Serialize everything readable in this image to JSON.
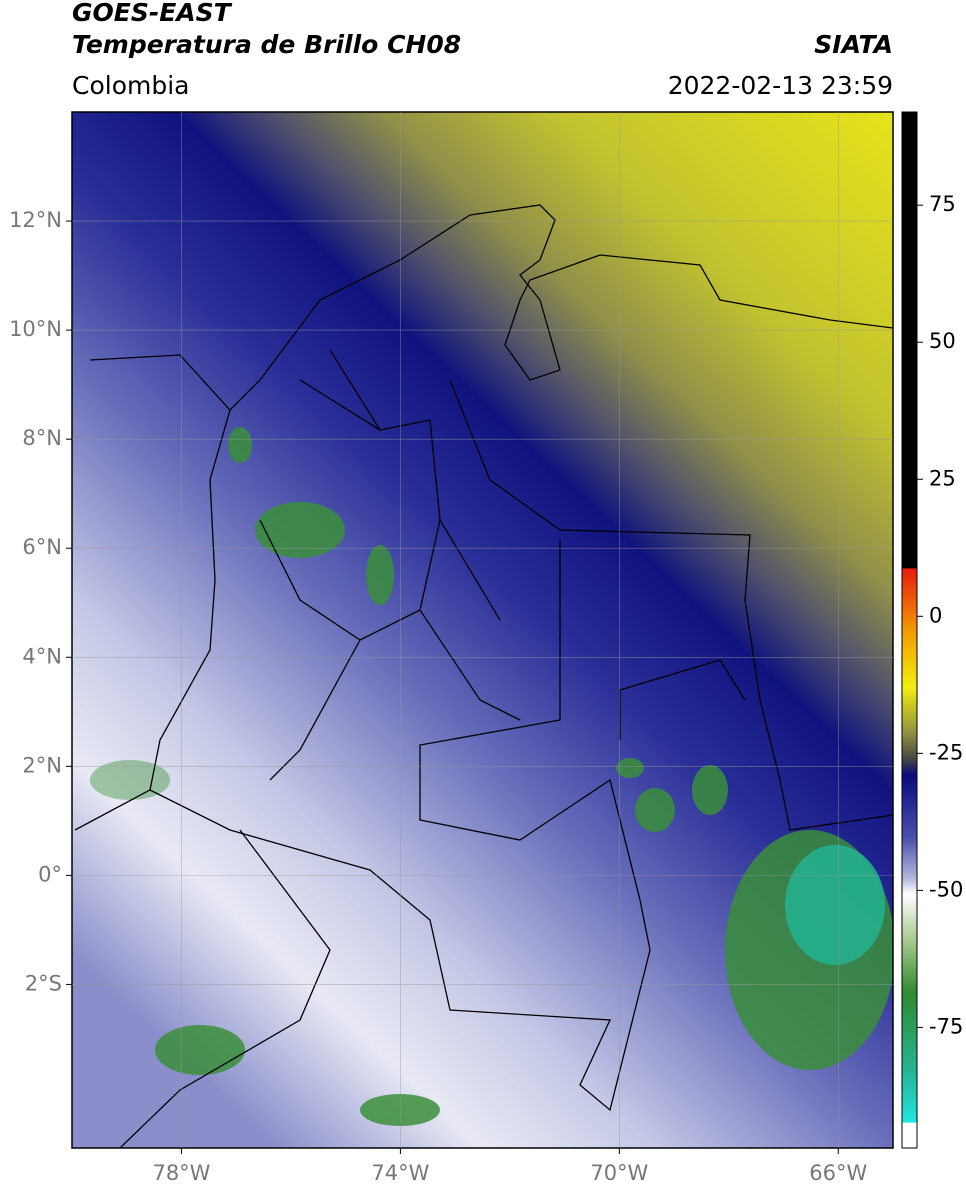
{
  "header": {
    "title": "GOES-EAST",
    "subtitle": "Temperatura de Brillo CH08",
    "source": "SIATA",
    "region": "Colombia",
    "datetime": "2022-02-13 23:59"
  },
  "map": {
    "xlim": [
      -80,
      -65
    ],
    "ylim": [
      -5,
      14
    ],
    "xticks": [
      {
        "value": -78,
        "label": "78°W"
      },
      {
        "value": -74,
        "label": "74°W"
      },
      {
        "value": -70,
        "label": "70°W"
      },
      {
        "value": -66,
        "label": "66°W"
      }
    ],
    "yticks": [
      {
        "value": 12,
        "label": "12°N"
      },
      {
        "value": 10,
        "label": "10°N"
      },
      {
        "value": 8,
        "label": "8°N"
      },
      {
        "value": 6,
        "label": "6°N"
      },
      {
        "value": 4,
        "label": "4°N"
      },
      {
        "value": 2,
        "label": "2°N"
      },
      {
        "value": 0,
        "label": "0°"
      },
      {
        "value": -2,
        "label": "2°S"
      }
    ],
    "grid": true
  },
  "colorbar": {
    "clim": [
      -97,
      92
    ],
    "ticks": [
      75,
      50,
      25,
      0,
      -25,
      -50,
      -75
    ]
  }
}
